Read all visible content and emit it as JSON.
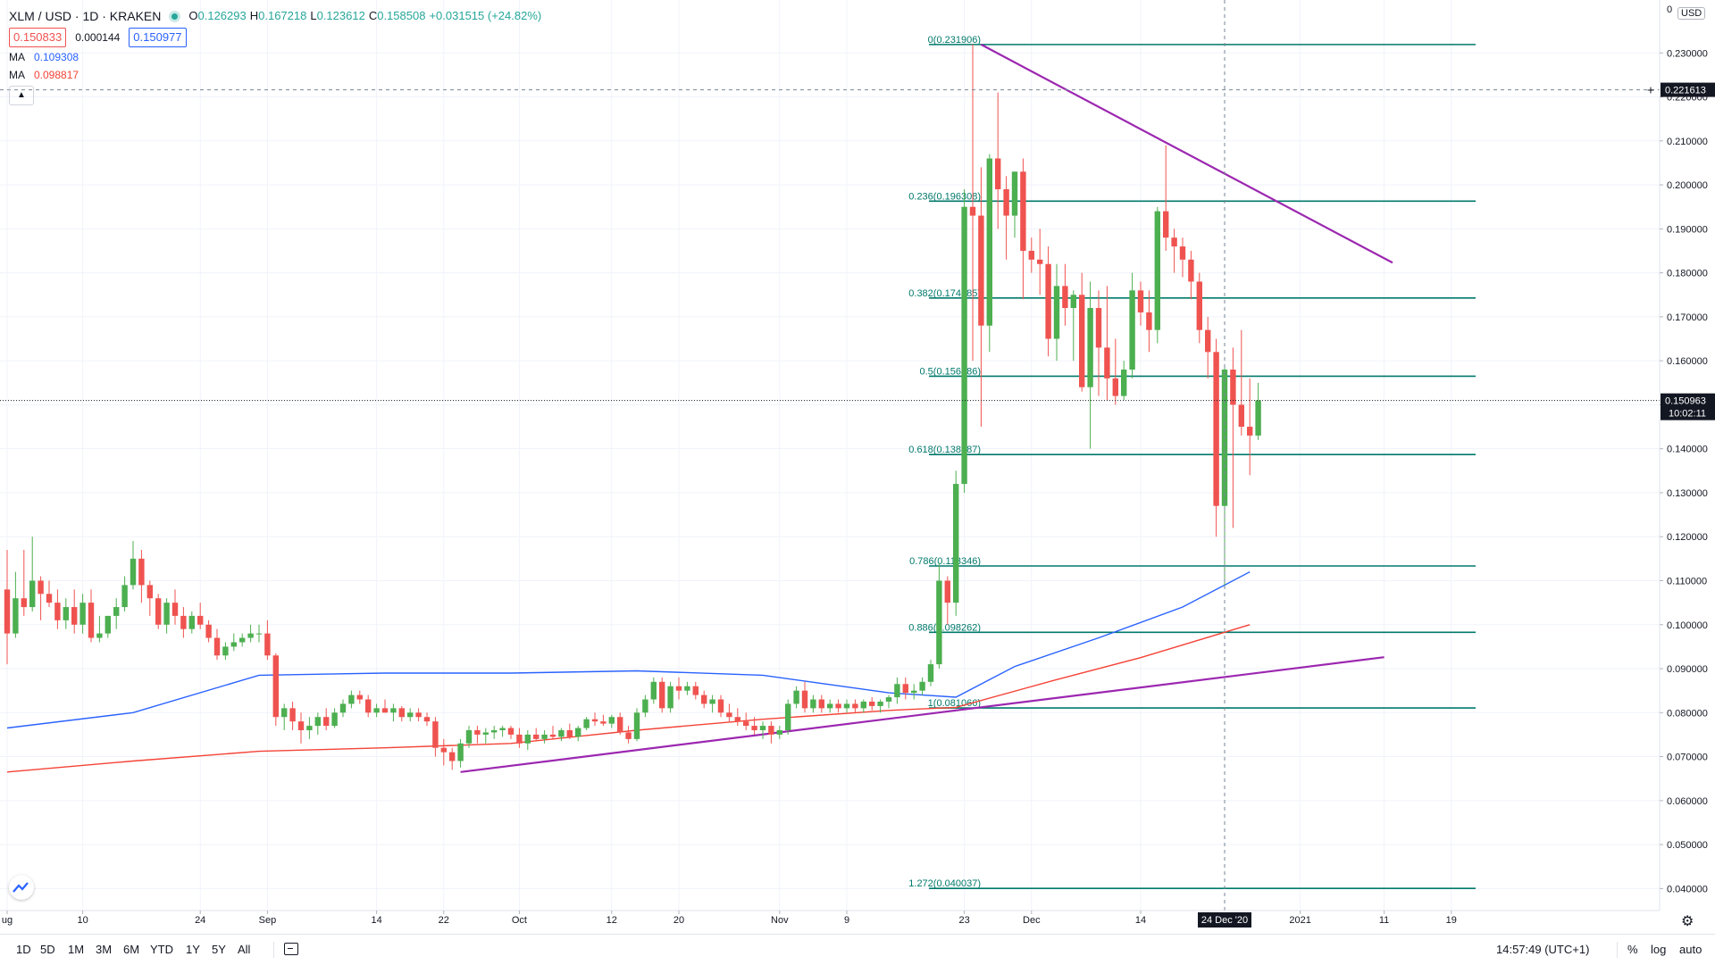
{
  "header": {
    "symbol": "XLM / USD · 1D · KRAKEN",
    "ohlc": [
      {
        "k": "O",
        "v": "0.126293"
      },
      {
        "k": "H",
        "v": "0.167218"
      },
      {
        "k": "L",
        "v": "0.123612"
      },
      {
        "k": "C",
        "v": "0.158508"
      },
      {
        "k": "",
        "v": "+0.031515 (+24.82%)"
      }
    ],
    "bid": "0.150833",
    "spread": "0.000144",
    "ask": "0.150977",
    "ma1_label": "MA",
    "ma1_value": "0.109308",
    "ma2_label": "MA",
    "ma2_value": "0.098817"
  },
  "colors": {
    "up": "#26a69a",
    "up_body": "#4caf50",
    "down": "#ef5350",
    "ma1": "#2962ff",
    "ma2": "#f44336",
    "fib": "#00796b",
    "trend": "#9c27b0",
    "crosshair": "#758696"
  },
  "timeframes": [
    "1D",
    "5D",
    "1M",
    "3M",
    "6M",
    "YTD",
    "1Y",
    "5Y",
    "All"
  ],
  "bottom_right": {
    "clock": "14:57:49 (UTC+1)",
    "percent": "%",
    "log": "log",
    "auto": "auto"
  },
  "currency": "USD",
  "chart_data": {
    "type": "candlestick",
    "price_axis": {
      "ymin": 0.035,
      "ymax": 0.24,
      "ticks": [
        "0.040000",
        "0.050000",
        "0.060000",
        "0.070000",
        "0.080000",
        "0.090000",
        "0.100000",
        "0.110000",
        "0.120000",
        "0.130000",
        "0.140000",
        "0.150000",
        "0.160000",
        "0.170000",
        "0.180000",
        "0.190000",
        "0.200000",
        "0.210000",
        "0.220000",
        "0.230000"
      ],
      "top_partial_label": "0"
    },
    "time_axis": {
      "ticks": [
        {
          "i": 0,
          "label": "ug"
        },
        {
          "i": 9,
          "label": "10"
        },
        {
          "i": 23,
          "label": "24"
        },
        {
          "i": 31,
          "label": "Sep"
        },
        {
          "i": 44,
          "label": "14"
        },
        {
          "i": 52,
          "label": "22"
        },
        {
          "i": 61,
          "label": "Oct"
        },
        {
          "i": 72,
          "label": "12"
        },
        {
          "i": 80,
          "label": "20"
        },
        {
          "i": 92,
          "label": "Nov"
        },
        {
          "i": 100,
          "label": "9"
        },
        {
          "i": 114,
          "label": "23"
        },
        {
          "i": 122,
          "label": "Dec"
        },
        {
          "i": 135,
          "label": "14"
        },
        {
          "i": 154,
          "label": "2021"
        },
        {
          "i": 164,
          "label": "11"
        },
        {
          "i": 172,
          "label": "19"
        }
      ],
      "highlight": {
        "i": 145,
        "label": "24 Dec '20"
      }
    },
    "current_price": {
      "value": 0.150963,
      "label": "0.150963",
      "countdown": "10:02:11"
    },
    "crosshair_price": {
      "value": 0.221613,
      "label": "0.221613"
    },
    "fib_levels": [
      {
        "label": "0(0.231906)",
        "value": 0.231906
      },
      {
        "label": "0.236(0.196308)",
        "value": 0.196308
      },
      {
        "label": "0.382(0.174285)",
        "value": 0.174285
      },
      {
        "label": "0.5(0.156486)",
        "value": 0.156486
      },
      {
        "label": "0.618(0.138687)",
        "value": 0.138687
      },
      {
        "label": "0.786(0.113346)",
        "value": 0.113346
      },
      {
        "label": "0.886(0.098262)",
        "value": 0.098262
      },
      {
        "label": "1(0.081066)",
        "value": 0.081066
      },
      {
        "label": "1.272(0.040037)",
        "value": 0.040037
      }
    ],
    "trendlines": [
      {
        "i1": 54,
        "v1": 0.0665,
        "i2": 164,
        "v2": 0.0926
      },
      {
        "i1": 116,
        "v1": 0.2319,
        "i2": 165,
        "v2": 0.1823
      }
    ],
    "ma1": [
      [
        0,
        0.0765
      ],
      [
        15,
        0.08
      ],
      [
        30,
        0.0885
      ],
      [
        45,
        0.089
      ],
      [
        60,
        0.089
      ],
      [
        75,
        0.0895
      ],
      [
        90,
        0.0885
      ],
      [
        105,
        0.0845
      ],
      [
        113,
        0.0835
      ],
      [
        120,
        0.0905
      ],
      [
        130,
        0.097
      ],
      [
        140,
        0.104
      ],
      [
        148,
        0.112
      ]
    ],
    "ma2": [
      [
        0,
        0.0665
      ],
      [
        15,
        0.069
      ],
      [
        30,
        0.0712
      ],
      [
        45,
        0.072
      ],
      [
        60,
        0.073
      ],
      [
        75,
        0.076
      ],
      [
        90,
        0.0785
      ],
      [
        105,
        0.0805
      ],
      [
        113,
        0.0812
      ],
      [
        125,
        0.0875
      ],
      [
        135,
        0.0925
      ],
      [
        148,
        0.1
      ]
    ],
    "candles": [
      [
        0.108,
        0.117,
        0.091,
        0.098
      ],
      [
        0.098,
        0.112,
        0.097,
        0.106
      ],
      [
        0.106,
        0.117,
        0.102,
        0.104
      ],
      [
        0.104,
        0.12,
        0.103,
        0.11
      ],
      [
        0.11,
        0.111,
        0.101,
        0.107
      ],
      [
        0.107,
        0.11,
        0.104,
        0.105
      ],
      [
        0.105,
        0.108,
        0.099,
        0.101
      ],
      [
        0.101,
        0.106,
        0.099,
        0.104
      ],
      [
        0.104,
        0.108,
        0.098,
        0.1
      ],
      [
        0.1,
        0.107,
        0.098,
        0.105
      ],
      [
        0.105,
        0.108,
        0.096,
        0.097
      ],
      [
        0.097,
        0.102,
        0.096,
        0.098
      ],
      [
        0.098,
        0.102,
        0.097,
        0.102
      ],
      [
        0.102,
        0.106,
        0.099,
        0.104
      ],
      [
        0.104,
        0.111,
        0.103,
        0.109
      ],
      [
        0.109,
        0.119,
        0.108,
        0.115
      ],
      [
        0.115,
        0.117,
        0.105,
        0.109
      ],
      [
        0.109,
        0.11,
        0.102,
        0.106
      ],
      [
        0.106,
        0.107,
        0.099,
        0.1
      ],
      [
        0.1,
        0.106,
        0.098,
        0.105
      ],
      [
        0.105,
        0.108,
        0.1,
        0.102
      ],
      [
        0.102,
        0.104,
        0.097,
        0.099
      ],
      [
        0.099,
        0.103,
        0.098,
        0.102
      ],
      [
        0.102,
        0.105,
        0.099,
        0.1
      ],
      [
        0.1,
        0.101,
        0.096,
        0.097
      ],
      [
        0.097,
        0.099,
        0.092,
        0.093
      ],
      [
        0.093,
        0.096,
        0.092,
        0.095
      ],
      [
        0.095,
        0.098,
        0.094,
        0.096
      ],
      [
        0.096,
        0.098,
        0.095,
        0.097
      ],
      [
        0.097,
        0.1,
        0.096,
        0.098
      ],
      [
        0.098,
        0.1,
        0.096,
        0.098
      ],
      [
        0.098,
        0.101,
        0.092,
        0.093
      ],
      [
        0.093,
        0.0935,
        0.077,
        0.079
      ],
      [
        0.079,
        0.082,
        0.076,
        0.081
      ],
      [
        0.081,
        0.0825,
        0.076,
        0.078
      ],
      [
        0.078,
        0.08,
        0.073,
        0.076
      ],
      [
        0.076,
        0.079,
        0.074,
        0.077
      ],
      [
        0.077,
        0.08,
        0.075,
        0.079
      ],
      [
        0.079,
        0.081,
        0.076,
        0.077
      ],
      [
        0.077,
        0.081,
        0.0765,
        0.08
      ],
      [
        0.08,
        0.083,
        0.079,
        0.082
      ],
      [
        0.082,
        0.085,
        0.081,
        0.084
      ],
      [
        0.084,
        0.085,
        0.082,
        0.083
      ],
      [
        0.083,
        0.084,
        0.079,
        0.08
      ],
      [
        0.08,
        0.082,
        0.079,
        0.081
      ],
      [
        0.081,
        0.083,
        0.08,
        0.08
      ],
      [
        0.08,
        0.082,
        0.078,
        0.081
      ],
      [
        0.081,
        0.0815,
        0.078,
        0.079
      ],
      [
        0.079,
        0.081,
        0.078,
        0.08
      ],
      [
        0.08,
        0.081,
        0.078,
        0.079
      ],
      [
        0.079,
        0.08,
        0.077,
        0.078
      ],
      [
        0.078,
        0.079,
        0.07,
        0.072
      ],
      [
        0.072,
        0.074,
        0.068,
        0.071
      ],
      [
        0.071,
        0.072,
        0.067,
        0.069
      ],
      [
        0.069,
        0.074,
        0.0675,
        0.073
      ],
      [
        0.073,
        0.077,
        0.072,
        0.076
      ],
      [
        0.076,
        0.077,
        0.073,
        0.075
      ],
      [
        0.075,
        0.0765,
        0.073,
        0.0755
      ],
      [
        0.0755,
        0.077,
        0.074,
        0.076
      ],
      [
        0.076,
        0.077,
        0.0745,
        0.0765
      ],
      [
        0.0765,
        0.077,
        0.074,
        0.075
      ],
      [
        0.075,
        0.0765,
        0.072,
        0.073
      ],
      [
        0.073,
        0.076,
        0.0715,
        0.075
      ],
      [
        0.075,
        0.0765,
        0.0735,
        0.074
      ],
      [
        0.074,
        0.076,
        0.073,
        0.075
      ],
      [
        0.075,
        0.077,
        0.074,
        0.0745
      ],
      [
        0.0745,
        0.0765,
        0.0735,
        0.076
      ],
      [
        0.076,
        0.0775,
        0.074,
        0.0745
      ],
      [
        0.0745,
        0.077,
        0.0735,
        0.0765
      ],
      [
        0.0765,
        0.079,
        0.076,
        0.0785
      ],
      [
        0.0785,
        0.08,
        0.077,
        0.078
      ],
      [
        0.078,
        0.0795,
        0.077,
        0.0775
      ],
      [
        0.0775,
        0.0795,
        0.0765,
        0.079
      ],
      [
        0.079,
        0.08,
        0.075,
        0.0755
      ],
      [
        0.0755,
        0.077,
        0.073,
        0.074
      ],
      [
        0.074,
        0.081,
        0.0735,
        0.08
      ],
      [
        0.08,
        0.084,
        0.079,
        0.083
      ],
      [
        0.083,
        0.088,
        0.082,
        0.087
      ],
      [
        0.087,
        0.088,
        0.08,
        0.081
      ],
      [
        0.081,
        0.087,
        0.08,
        0.086
      ],
      [
        0.086,
        0.088,
        0.083,
        0.085
      ],
      [
        0.085,
        0.087,
        0.084,
        0.086
      ],
      [
        0.086,
        0.087,
        0.083,
        0.084
      ],
      [
        0.084,
        0.085,
        0.081,
        0.082
      ],
      [
        0.082,
        0.084,
        0.08,
        0.083
      ],
      [
        0.083,
        0.084,
        0.079,
        0.08
      ],
      [
        0.08,
        0.082,
        0.078,
        0.079
      ],
      [
        0.079,
        0.081,
        0.077,
        0.078
      ],
      [
        0.078,
        0.08,
        0.076,
        0.077
      ],
      [
        0.077,
        0.079,
        0.075,
        0.076
      ],
      [
        0.076,
        0.078,
        0.074,
        0.077
      ],
      [
        0.077,
        0.078,
        0.073,
        0.075
      ],
      [
        0.075,
        0.077,
        0.074,
        0.076
      ],
      [
        0.076,
        0.083,
        0.075,
        0.082
      ],
      [
        0.082,
        0.086,
        0.081,
        0.085
      ],
      [
        0.085,
        0.087,
        0.08,
        0.081
      ],
      [
        0.081,
        0.084,
        0.08,
        0.083
      ],
      [
        0.083,
        0.084,
        0.08,
        0.081
      ],
      [
        0.081,
        0.083,
        0.08,
        0.082
      ],
      [
        0.082,
        0.083,
        0.08,
        0.081
      ],
      [
        0.081,
        0.083,
        0.08,
        0.082
      ],
      [
        0.082,
        0.083,
        0.08,
        0.081
      ],
      [
        0.081,
        0.083,
        0.08,
        0.0825
      ],
      [
        0.0825,
        0.0835,
        0.0805,
        0.0815
      ],
      [
        0.0815,
        0.083,
        0.08,
        0.0825
      ],
      [
        0.0825,
        0.084,
        0.081,
        0.0835
      ],
      [
        0.0835,
        0.088,
        0.082,
        0.0865
      ],
      [
        0.0865,
        0.088,
        0.083,
        0.0845
      ],
      [
        0.0845,
        0.0865,
        0.083,
        0.085
      ],
      [
        0.085,
        0.088,
        0.084,
        0.087
      ],
      [
        0.087,
        0.092,
        0.086,
        0.091
      ],
      [
        0.091,
        0.114,
        0.09,
        0.11
      ],
      [
        0.11,
        0.111,
        0.1,
        0.105
      ],
      [
        0.105,
        0.135,
        0.102,
        0.132
      ],
      [
        0.132,
        0.199,
        0.13,
        0.195
      ],
      [
        0.195,
        0.232,
        0.16,
        0.193
      ],
      [
        0.193,
        0.204,
        0.145,
        0.168
      ],
      [
        0.168,
        0.207,
        0.162,
        0.206
      ],
      [
        0.206,
        0.221,
        0.19,
        0.199
      ],
      [
        0.199,
        0.202,
        0.183,
        0.193
      ],
      [
        0.193,
        0.203,
        0.188,
        0.203
      ],
      [
        0.203,
        0.206,
        0.174,
        0.185
      ],
      [
        0.185,
        0.188,
        0.18,
        0.183
      ],
      [
        0.183,
        0.19,
        0.175,
        0.182
      ],
      [
        0.182,
        0.186,
        0.161,
        0.165
      ],
      [
        0.165,
        0.182,
        0.16,
        0.177
      ],
      [
        0.177,
        0.182,
        0.168,
        0.172
      ],
      [
        0.172,
        0.176,
        0.16,
        0.175
      ],
      [
        0.175,
        0.18,
        0.153,
        0.154
      ],
      [
        0.154,
        0.178,
        0.14,
        0.172
      ],
      [
        0.172,
        0.176,
        0.152,
        0.163
      ],
      [
        0.163,
        0.177,
        0.151,
        0.156
      ],
      [
        0.156,
        0.165,
        0.15,
        0.152
      ],
      [
        0.152,
        0.16,
        0.151,
        0.158
      ],
      [
        0.158,
        0.18,
        0.156,
        0.176
      ],
      [
        0.176,
        0.178,
        0.168,
        0.171
      ],
      [
        0.171,
        0.176,
        0.162,
        0.167
      ],
      [
        0.167,
        0.195,
        0.164,
        0.194
      ],
      [
        0.194,
        0.209,
        0.185,
        0.188
      ],
      [
        0.188,
        0.19,
        0.18,
        0.186
      ],
      [
        0.186,
        0.188,
        0.179,
        0.183
      ],
      [
        0.183,
        0.185,
        0.174,
        0.178
      ],
      [
        0.178,
        0.18,
        0.164,
        0.167
      ],
      [
        0.167,
        0.17,
        0.156,
        0.162
      ],
      [
        0.162,
        0.165,
        0.12,
        0.127
      ],
      [
        0.127,
        0.159,
        0.109,
        0.158
      ],
      [
        0.158,
        0.163,
        0.122,
        0.15
      ],
      [
        0.15,
        0.167,
        0.143,
        0.145
      ],
      [
        0.145,
        0.156,
        0.134,
        0.143
      ],
      [
        0.143,
        0.155,
        0.142,
        0.151
      ]
    ]
  }
}
